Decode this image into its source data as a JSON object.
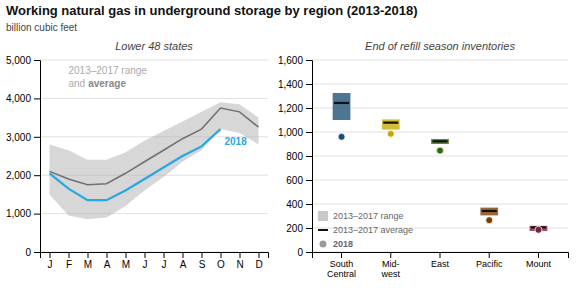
{
  "chart_data": [
    {
      "type": "line",
      "title": "Working natural gas in underground storage by region (2013-2018)",
      "ylabel": "billion cubic feet",
      "subtitle": "Lower 48 states",
      "annotations": [
        "2013–2017 range",
        "and",
        "average"
      ],
      "categories": [
        "J",
        "F",
        "M",
        "A",
        "M",
        "J",
        "J",
        "A",
        "S",
        "O",
        "N",
        "D"
      ],
      "series": [
        {
          "type": "area",
          "low": [
            1500,
            950,
            850,
            900,
            1200,
            1600,
            1950,
            2350,
            2650,
            3200,
            3100,
            2800
          ],
          "high": [
            2800,
            2650,
            2400,
            2400,
            2600,
            2900,
            3150,
            3400,
            3650,
            3900,
            3850,
            3500
          ],
          "color": "#b0b0b0"
        },
        {
          "type": "line",
          "values": [
            2100,
            1900,
            1750,
            1780,
            2050,
            2350,
            2650,
            2950,
            3200,
            3750,
            3650,
            3250
          ],
          "color": "#707070"
        },
        {
          "type": "line",
          "name": "2018",
          "values": [
            2050,
            1650,
            1350,
            1350,
            1600,
            1900,
            2200,
            2500,
            2750,
            3200,
            null,
            null
          ],
          "color": "#29a8e0"
        }
      ],
      "ylim": [
        0,
        5000
      ],
      "yticks": [
        0,
        {
          "value": 1000,
          "label": "1,000"
        },
        {
          "value": 2000,
          "label": "2,000"
        },
        {
          "value": 3000,
          "label": "3,000"
        },
        {
          "value": 4000,
          "label": "4,000"
        },
        {
          "value": 5000,
          "label": "5,000"
        }
      ],
      "grid": true
    },
    {
      "type": "range",
      "subtitle": "End of refill season inventories",
      "categories": [
        "South\nCentral",
        "Mid-\nwest",
        "East",
        "Pacific",
        "Mount"
      ],
      "colors": [
        "#1a4f72",
        "#c8a800",
        "#2d6a0a",
        "#7b3f00",
        "#7b1f3a"
      ],
      "series": [
        {
          "name": "2013–2017 range",
          "type": "range",
          "low": [
            1100,
            1020,
            900,
            305,
            175
          ],
          "high": [
            1325,
            1105,
            942,
            370,
            218
          ],
          "color": "#aaaaaa"
        },
        {
          "name": "2013–2017 average",
          "type": "tick",
          "values": [
            1242,
            1078,
            922,
            342,
            205
          ],
          "color": "#111111"
        },
        {
          "name": "2018",
          "type": "scatter",
          "values": [
            960,
            985,
            845,
            265,
            185
          ],
          "color": "#999999"
        }
      ],
      "ylim": [
        0,
        1600
      ],
      "yticks": [
        0,
        200,
        400,
        600,
        800,
        {
          "value": 1000,
          "label": "1,000"
        },
        {
          "value": 1200,
          "label": "1,200"
        },
        {
          "value": 1400,
          "label": "1,400"
        },
        {
          "value": 1600,
          "label": "1,600"
        }
      ],
      "grid": true,
      "legend": "lower left"
    }
  ]
}
